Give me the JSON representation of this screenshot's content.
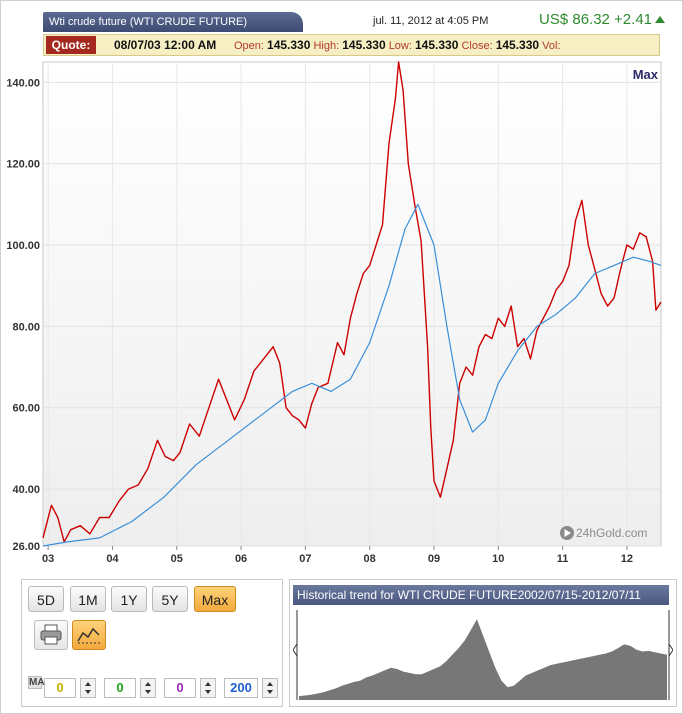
{
  "header": {
    "title": "Wti crude future (WTI CRUDE FUTURE)",
    "timestamp": "jul. 11, 2012 at 4:05 PM",
    "price": "US$ 86.32 +2.41",
    "price_color": "#2e8b2e"
  },
  "quote": {
    "badge": "Quote:",
    "date": "08/07/03 12:00 AM",
    "open_label": "Open:",
    "open": "145.330",
    "high_label": "High:",
    "high": "145.330",
    "low_label": "Low:",
    "low": "145.330",
    "close_label": "Close:",
    "close": "145.330",
    "vol_label": "Vol:"
  },
  "chart_data": {
    "type": "line",
    "range_label": "Max",
    "watermark": "24hGold.com",
    "x_ticks": [
      "03",
      "04",
      "05",
      "06",
      "07",
      "08",
      "09",
      "10",
      "11",
      "12"
    ],
    "y_ticks": [
      "26.00",
      "40.00",
      "60.00",
      "80.00",
      "100.00",
      "120.00",
      "140.00"
    ],
    "ylim": [
      26,
      145
    ],
    "xlim": [
      2002.92,
      2012.53
    ],
    "grid": true,
    "series": [
      {
        "color": "#cc0000",
        "x": [
          2002.92,
          2003.05,
          2003.15,
          2003.25,
          2003.35,
          2003.5,
          2003.65,
          2003.8,
          2003.95,
          2004.1,
          2004.25,
          2004.4,
          2004.55,
          2004.7,
          2004.82,
          2004.95,
          2005.05,
          2005.2,
          2005.35,
          2005.5,
          2005.65,
          2005.75,
          2005.9,
          2006.05,
          2006.2,
          2006.35,
          2006.5,
          2006.6,
          2006.7,
          2006.8,
          2006.9,
          2007.0,
          2007.1,
          2007.2,
          2007.35,
          2007.5,
          2007.6,
          2007.7,
          2007.8,
          2007.9,
          2008.0,
          2008.1,
          2008.2,
          2008.3,
          2008.4,
          2008.45,
          2008.52,
          2008.6,
          2008.7,
          2008.8,
          2008.9,
          2008.95,
          2009.0,
          2009.1,
          2009.2,
          2009.3,
          2009.4,
          2009.5,
          2009.6,
          2009.7,
          2009.8,
          2009.9,
          2010.0,
          2010.1,
          2010.2,
          2010.3,
          2010.4,
          2010.5,
          2010.6,
          2010.7,
          2010.8,
          2010.9,
          2011.0,
          2011.1,
          2011.2,
          2011.3,
          2011.4,
          2011.5,
          2011.6,
          2011.7,
          2011.8,
          2011.9,
          2012.0,
          2012.1,
          2012.2,
          2012.3,
          2012.4,
          2012.45,
          2012.53
        ],
        "values": [
          28,
          36,
          33,
          27,
          30,
          31,
          29,
          33,
          33,
          37,
          40,
          41,
          45,
          52,
          48,
          47,
          49,
          56,
          53,
          60,
          67,
          63,
          57,
          62,
          69,
          72,
          75,
          71,
          60,
          58,
          57,
          55,
          61,
          65,
          66,
          76,
          73,
          82,
          88,
          93,
          95,
          100,
          105,
          125,
          136,
          145,
          138,
          120,
          110,
          101,
          75,
          55,
          42,
          38,
          45,
          52,
          66,
          70,
          68,
          75,
          78,
          77,
          82,
          80,
          85,
          75,
          77,
          72,
          79,
          82,
          85,
          89,
          91,
          95,
          106,
          111,
          100,
          94,
          88,
          85,
          87,
          94,
          100,
          99,
          103,
          102,
          96,
          84,
          86
        ]
      },
      {
        "color": "#3b8fd9",
        "x": [
          2002.92,
          2003.3,
          2003.8,
          2004.3,
          2004.8,
          2005.3,
          2005.8,
          2006.3,
          2006.8,
          2007.1,
          2007.4,
          2007.7,
          2008.0,
          2008.3,
          2008.55,
          2008.75,
          2009.0,
          2009.2,
          2009.4,
          2009.6,
          2009.8,
          2010.0,
          2010.3,
          2010.6,
          2010.9,
          2011.2,
          2011.5,
          2011.8,
          2012.1,
          2012.35,
          2012.53
        ],
        "values": [
          26,
          27,
          28,
          32,
          38,
          46,
          52,
          58,
          64,
          66,
          64,
          67,
          76,
          90,
          104,
          110,
          100,
          80,
          62,
          54,
          57,
          66,
          74,
          80,
          83,
          87,
          93,
          95,
          97,
          96,
          95
        ]
      }
    ]
  },
  "controls": {
    "ranges": [
      "5D",
      "1M",
      "1Y",
      "5Y",
      "Max"
    ],
    "active_range": "Max",
    "ma_label": "MA",
    "ma_values": [
      {
        "value": "0",
        "color": "#c9b400"
      },
      {
        "value": "0",
        "color": "#1aa51a"
      },
      {
        "value": "0",
        "color": "#9b2bb5"
      },
      {
        "value": "200",
        "color": "#1f5fd0"
      }
    ],
    "print_icon": "printer-icon",
    "chart_icon": "line-chart-icon"
  },
  "navigator": {
    "title": "Historical trend for WTI CRUDE FUTURE2002/07/15-2012/07/11",
    "fill_color": "#777777",
    "values": [
      26,
      27,
      28,
      30,
      32,
      35,
      38,
      42,
      45,
      48,
      50,
      55,
      58,
      62,
      66,
      70,
      68,
      64,
      62,
      60,
      60,
      64,
      68,
      72,
      80,
      90,
      100,
      112,
      128,
      145,
      120,
      95,
      70,
      50,
      40,
      42,
      50,
      58,
      62,
      66,
      70,
      74,
      76,
      78,
      80,
      82,
      84,
      86,
      88,
      90,
      92,
      95,
      100,
      106,
      104,
      98,
      95,
      96,
      94,
      92,
      90
    ]
  }
}
